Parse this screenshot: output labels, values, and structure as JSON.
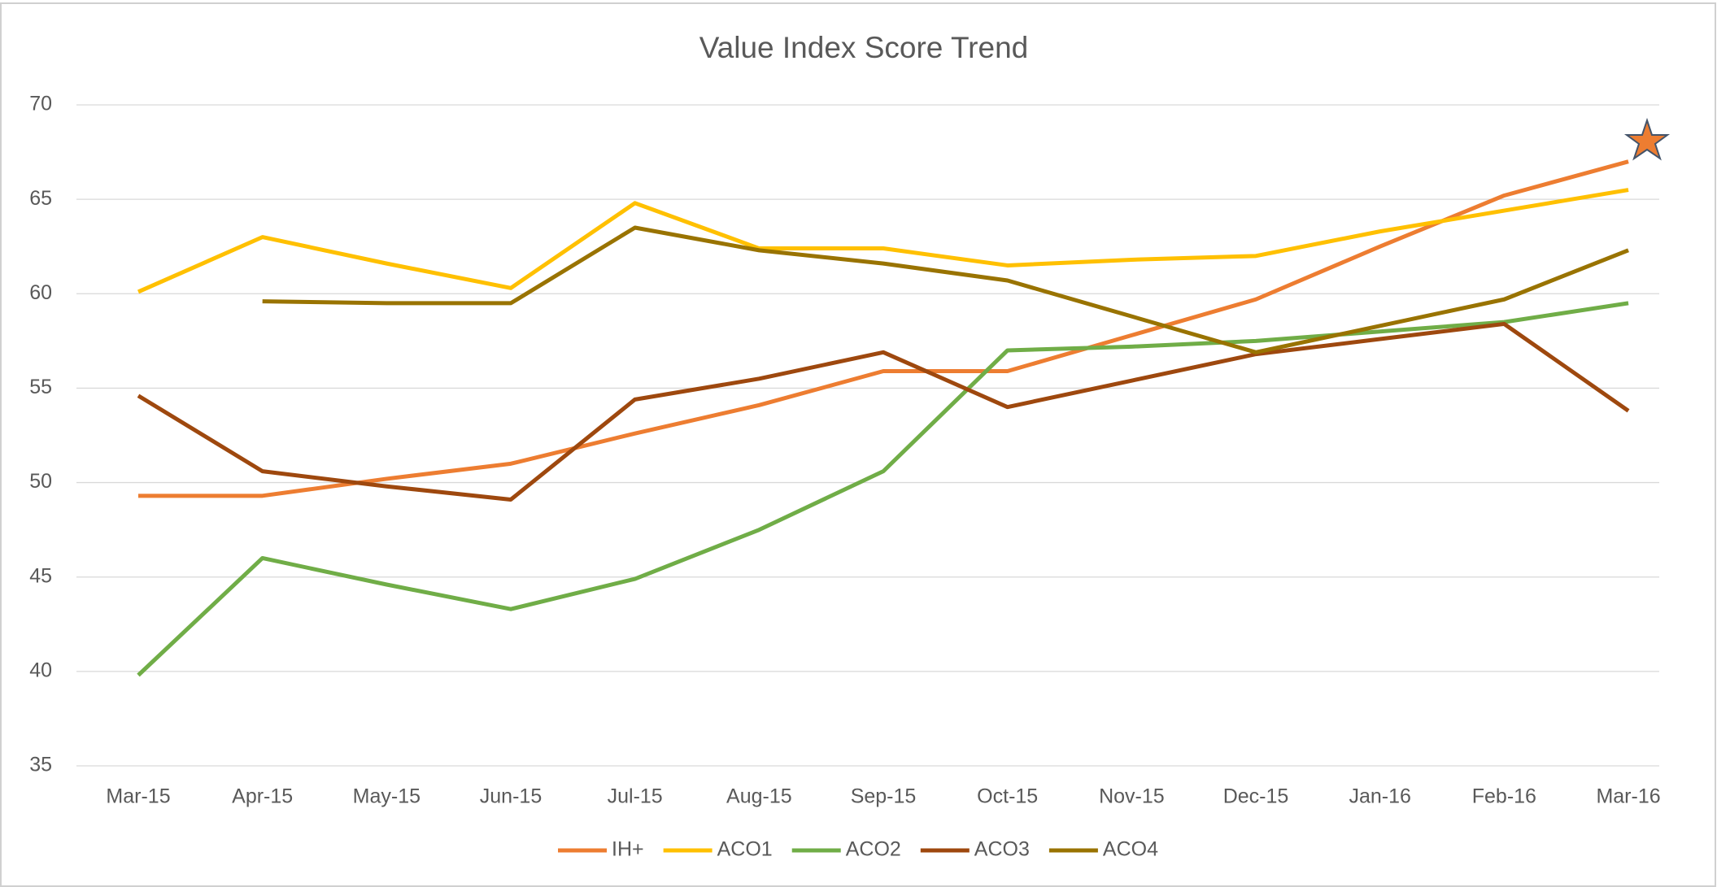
{
  "chart_data": {
    "type": "line",
    "title": "Value Index Score Trend",
    "categories": [
      "Mar-15",
      "Apr-15",
      "May-15",
      "Jun-15",
      "Jul-15",
      "Aug-15",
      "Sep-15",
      "Oct-15",
      "Nov-15",
      "Dec-15",
      "Jan-16",
      "Feb-16",
      "Mar-16"
    ],
    "series": [
      {
        "name": "IH+",
        "color": "#ED7D31",
        "values": [
          49.3,
          49.3,
          50.2,
          51.0,
          52.6,
          54.1,
          55.9,
          55.9,
          57.8,
          59.7,
          62.5,
          65.2,
          67.0
        ]
      },
      {
        "name": "ACO1",
        "color": "#FFC000",
        "values": [
          60.1,
          63.0,
          61.6,
          60.3,
          64.8,
          62.4,
          62.4,
          61.5,
          61.8,
          62.0,
          63.3,
          64.4,
          65.5
        ]
      },
      {
        "name": "ACO2",
        "color": "#70AD47",
        "values": [
          39.8,
          46.0,
          44.6,
          43.3,
          44.9,
          47.5,
          50.6,
          57.0,
          57.2,
          57.5,
          58.0,
          58.5,
          59.5
        ]
      },
      {
        "name": "ACO3",
        "color": "#9E480E",
        "values": [
          54.6,
          50.6,
          49.8,
          49.1,
          54.4,
          55.5,
          56.9,
          54.0,
          55.4,
          56.8,
          57.6,
          58.4,
          53.8
        ]
      },
      {
        "name": "ACO4",
        "color": "#997300",
        "values": [
          null,
          59.6,
          59.5,
          59.5,
          63.5,
          62.3,
          61.6,
          60.7,
          58.8,
          56.9,
          58.3,
          59.7,
          62.3
        ]
      }
    ],
    "ylim": [
      35,
      70
    ],
    "yticks": [
      35,
      40,
      45,
      50,
      55,
      60,
      65,
      70
    ],
    "grid": true,
    "legend": "bottom"
  }
}
